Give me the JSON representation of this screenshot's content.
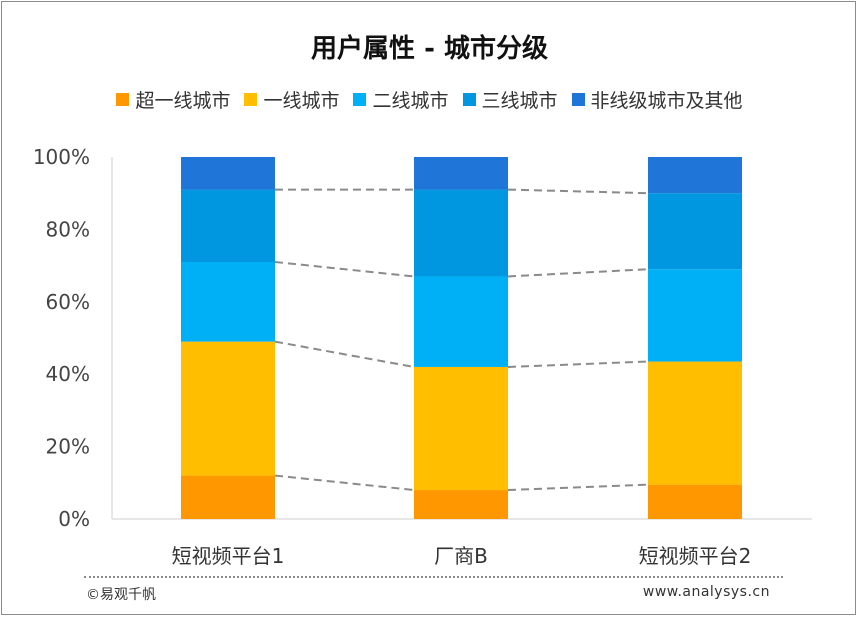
{
  "colors": [
    "#ff9800",
    "#ffbf00",
    "#00b0f6",
    "#0097e0",
    "#1f75d8"
  ],
  "chart_data": {
    "type": "bar",
    "stacked": true,
    "title": "用户属性 - 城市分级",
    "categories": [
      "短视频平台1",
      "厂商B",
      "短视频平台2"
    ],
    "series": [
      {
        "name": "超一线城市",
        "values": [
          12,
          8,
          9.5
        ]
      },
      {
        "name": "一线城市",
        "values": [
          37,
          34,
          34
        ]
      },
      {
        "name": "二线城市",
        "values": [
          22,
          25,
          25.5
        ]
      },
      {
        "name": "三线城市",
        "values": [
          20,
          24,
          21
        ]
      },
      {
        "name": "非线级城市及其他",
        "values": [
          9,
          9,
          10
        ]
      }
    ],
    "ylim": [
      0,
      100
    ],
    "yticks": [
      "0%",
      "20%",
      "40%",
      "60%",
      "80%",
      "100%"
    ],
    "legend_position": "top",
    "connector_lines": "dashed"
  },
  "footer": {
    "source": "©易观千帆",
    "url": "www.analysys.cn"
  }
}
